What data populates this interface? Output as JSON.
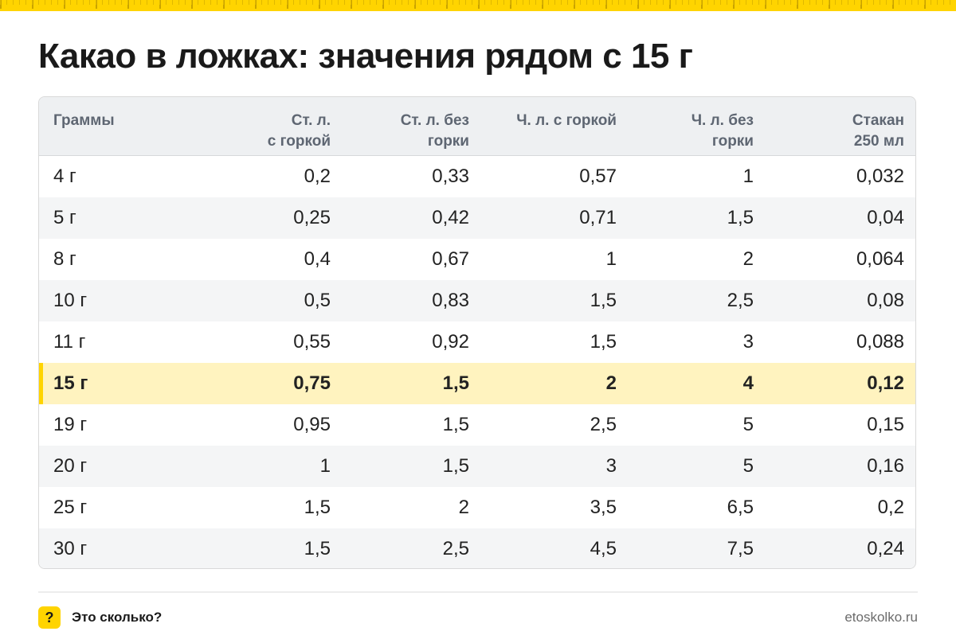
{
  "title": "Какао в ложках: значения рядом с 15 г",
  "colors": {
    "accent": "#ffd400",
    "highlight_row": "#fff3bf",
    "header_bg": "#eef0f2"
  },
  "table": {
    "headers": [
      [
        "Граммы"
      ],
      [
        "Ст. л.",
        "с горкой"
      ],
      [
        "Ст. л. без",
        "горки"
      ],
      [
        "Ч. л. с горкой"
      ],
      [
        "Ч. л. без",
        "горки"
      ],
      [
        "Стакан",
        "250 мл"
      ]
    ],
    "highlight_index": 5,
    "rows": [
      [
        "4 г",
        "0,2",
        "0,33",
        "0,57",
        "1",
        "0,032"
      ],
      [
        "5 г",
        "0,25",
        "0,42",
        "0,71",
        "1,5",
        "0,04"
      ],
      [
        "8 г",
        "0,4",
        "0,67",
        "1",
        "2",
        "0,064"
      ],
      [
        "10 г",
        "0,5",
        "0,83",
        "1,5",
        "2,5",
        "0,08"
      ],
      [
        "11 г",
        "0,55",
        "0,92",
        "1,5",
        "3",
        "0,088"
      ],
      [
        "15 г",
        "0,75",
        "1,5",
        "2",
        "4",
        "0,12"
      ],
      [
        "19 г",
        "0,95",
        "1,5",
        "2,5",
        "5",
        "0,15"
      ],
      [
        "20 г",
        "1",
        "1,5",
        "3",
        "5",
        "0,16"
      ],
      [
        "25 г",
        "1,5",
        "2",
        "3,5",
        "6,5",
        "0,2"
      ],
      [
        "30 г",
        "1,5",
        "2,5",
        "4,5",
        "7,5",
        "0,24"
      ]
    ]
  },
  "footer": {
    "icon_glyph": "?",
    "icon_name": "question-icon",
    "brand": "Это сколько?",
    "site": "etoskolko.ru"
  }
}
